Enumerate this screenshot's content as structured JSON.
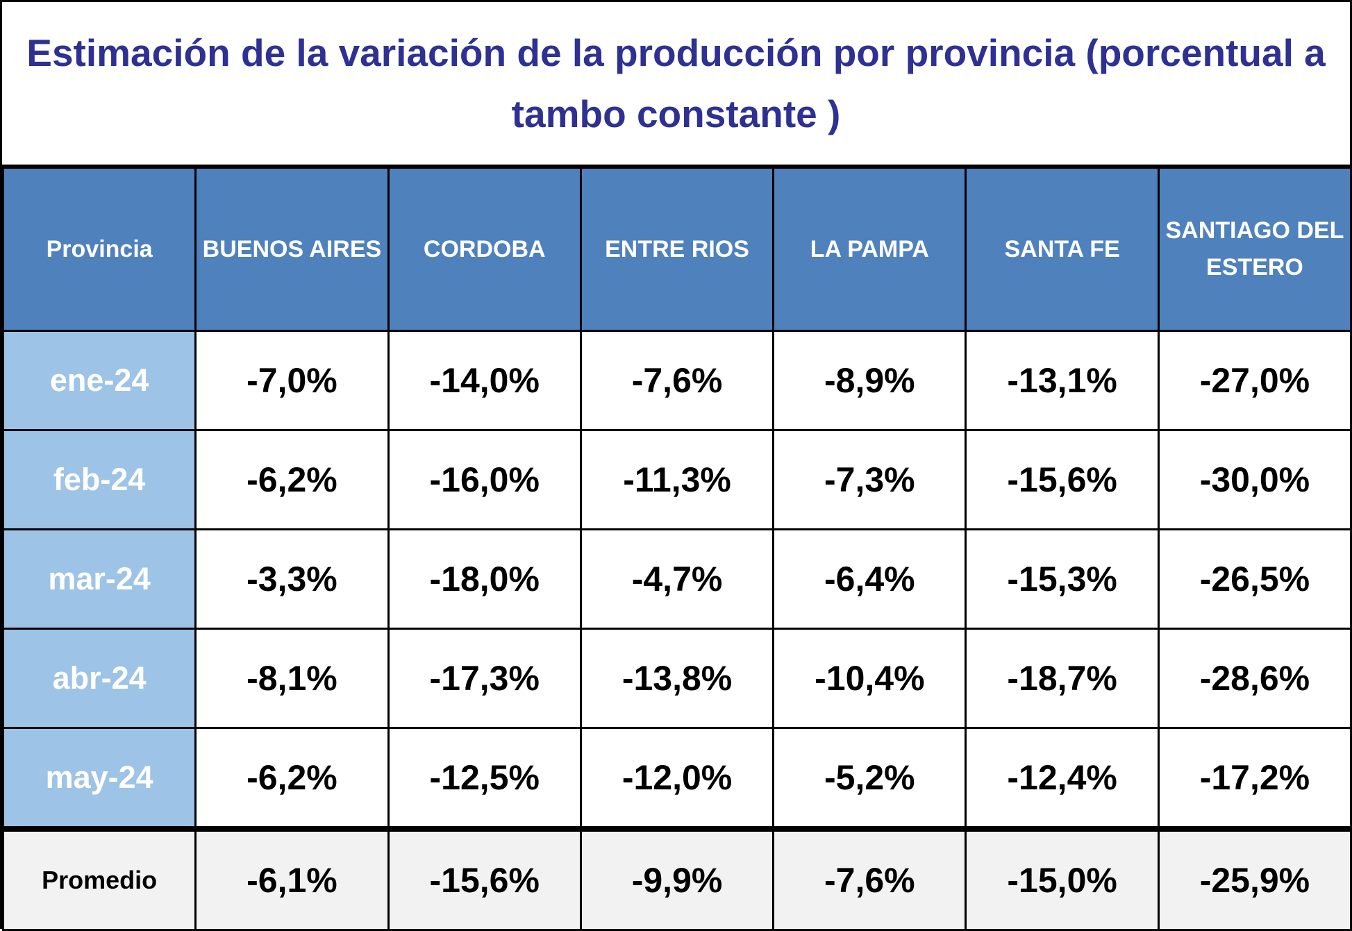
{
  "chart_data": {
    "type": "table",
    "title": "Estimación de la variación de la producción por provincia (porcentual a tambo constante )",
    "header_label": "Provincia",
    "columns": [
      "BUENOS AIRES",
      "CORDOBA",
      "ENTRE RIOS",
      "LA PAMPA",
      "SANTA FE",
      "SANTIAGO DEL ESTERO"
    ],
    "rows": [
      {
        "label": "ene-24",
        "values": [
          "-7,0%",
          "-14,0%",
          "-7,6%",
          "-8,9%",
          "-13,1%",
          "-27,0%"
        ]
      },
      {
        "label": "feb-24",
        "values": [
          "-6,2%",
          "-16,0%",
          "-11,3%",
          "-7,3%",
          "-15,6%",
          "-30,0%"
        ]
      },
      {
        "label": "mar-24",
        "values": [
          "-3,3%",
          "-18,0%",
          "-4,7%",
          "-6,4%",
          "-15,3%",
          "-26,5%"
        ]
      },
      {
        "label": "abr-24",
        "values": [
          "-8,1%",
          "-17,3%",
          "-13,8%",
          "-10,4%",
          "-18,7%",
          "-28,6%"
        ]
      },
      {
        "label": "may-24",
        "values": [
          "-6,2%",
          "-12,5%",
          "-12,0%",
          "-5,2%",
          "-12,4%",
          "-17,2%"
        ]
      }
    ],
    "summary": {
      "label": "Promedio",
      "values": [
        "-6,1%",
        "-15,6%",
        "-9,9%",
        "-7,6%",
        "-15,0%",
        "-25,9%"
      ]
    }
  },
  "colors": {
    "title_text": "#2e3192",
    "header_bg": "#4f81bd",
    "month_bg": "#9dc3e6",
    "summary_bg": "#f2f2f2"
  }
}
